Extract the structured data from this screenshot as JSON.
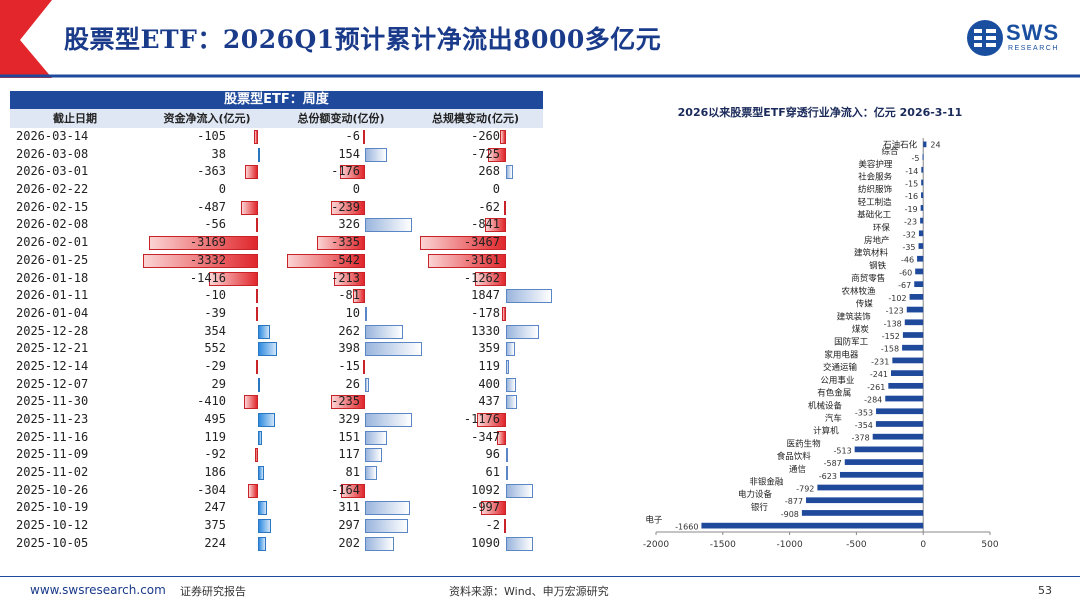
{
  "title": "股票型ETF：2026Q1预计累计净流出8000多亿元",
  "logo": {
    "name": "SWS",
    "sub": "RESEARCH"
  },
  "table": {
    "title": "股票型ETF：周度",
    "headers": [
      "截止日期",
      "资金净流入(亿元)",
      "总份额变动(亿份)",
      "总规模变动(亿元)"
    ],
    "rows": [
      [
        "2026-03-14",
        -105,
        -6,
        -260
      ],
      [
        "2026-03-08",
        38,
        154,
        -725
      ],
      [
        "2026-03-01",
        -363,
        -176,
        268
      ],
      [
        "2026-02-22",
        0,
        0,
        0
      ],
      [
        "2026-02-15",
        -487,
        -239,
        -62
      ],
      [
        "2026-02-08",
        -56,
        326,
        -841
      ],
      [
        "2026-02-01",
        -3169,
        -335,
        -3467
      ],
      [
        "2026-01-25",
        -3332,
        -542,
        -3161
      ],
      [
        "2026-01-18",
        -1416,
        -213,
        -1262
      ],
      [
        "2026-01-11",
        -10,
        -81,
        1847
      ],
      [
        "2026-01-04",
        -39,
        10,
        -178
      ],
      [
        "2025-12-28",
        354,
        262,
        1330
      ],
      [
        "2025-12-21",
        552,
        398,
        359
      ],
      [
        "2025-12-14",
        -29,
        -15,
        119
      ],
      [
        "2025-12-07",
        29,
        26,
        400
      ],
      [
        "2025-11-30",
        -410,
        -235,
        437
      ],
      [
        "2025-11-23",
        495,
        329,
        -1176
      ],
      [
        "2025-11-16",
        119,
        151,
        -347
      ],
      [
        "2025-11-09",
        -92,
        117,
        96
      ],
      [
        "2025-11-02",
        186,
        81,
        61
      ],
      [
        "2025-10-26",
        -304,
        -164,
        1092
      ],
      [
        "2025-10-19",
        247,
        311,
        -997
      ],
      [
        "2025-10-12",
        375,
        297,
        -2
      ],
      [
        "2025-10-05",
        224,
        202,
        1090
      ]
    ]
  },
  "chart_data": {
    "type": "bar",
    "orientation": "horizontal",
    "title": "2026以来股票型ETF穿透行业净流入：亿元 2026-3-11",
    "categories": [
      "石油石化",
      "综合",
      "美容护理",
      "社会服务",
      "纺织服饰",
      "轻工制造",
      "基础化工",
      "环保",
      "房地产",
      "建筑材料",
      "钢铁",
      "商贸零售",
      "农林牧渔",
      "传媒",
      "建筑装饰",
      "煤炭",
      "国防军工",
      "家用电器",
      "交通运输",
      "公用事业",
      "有色金属",
      "机械设备",
      "汽车",
      "计算机",
      "医药生物",
      "食品饮料",
      "通信",
      "非银金融",
      "电力设备",
      "银行",
      "电子"
    ],
    "values": [
      24,
      -5,
      -14,
      -15,
      -16,
      -19,
      -23,
      -32,
      -35,
      -46,
      -60,
      -67,
      -102,
      -123,
      -138,
      -152,
      -158,
      -231,
      -241,
      -261,
      -284,
      -353,
      -354,
      -378,
      -513,
      -587,
      -623,
      -792,
      -877,
      -908,
      -1660
    ],
    "xlim": [
      -2000,
      500
    ],
    "xticks": [
      -2000,
      -1500,
      -1000,
      -500,
      0,
      500
    ],
    "bar_color": "#1f4a9c"
  },
  "footer": {
    "url": "www.swsresearch.com",
    "report": "证券研究报告",
    "source": "资料来源：Wind、申万宏源研究",
    "page": "53"
  }
}
